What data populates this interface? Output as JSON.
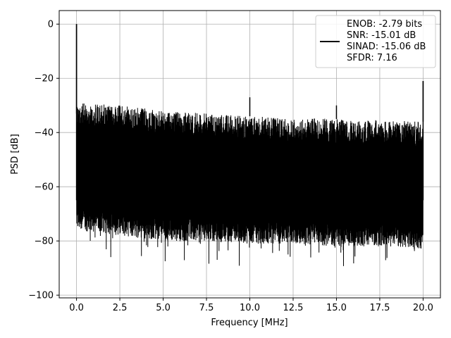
{
  "chart_data": {
    "type": "line",
    "title": "",
    "xlabel": "Frequency [MHz]",
    "ylabel": "PSD [dB]",
    "xlim": [
      -1.0,
      21.0
    ],
    "ylim": [
      -101,
      5
    ],
    "xticks": [
      0.0,
      2.5,
      5.0,
      7.5,
      10.0,
      12.5,
      15.0,
      17.5,
      20.0
    ],
    "xtick_labels": [
      "0.0",
      "2.5",
      "5.0",
      "7.5",
      "10.0",
      "12.5",
      "15.0",
      "17.5",
      "20.0"
    ],
    "yticks": [
      0,
      -20,
      -40,
      -60,
      -80,
      -100
    ],
    "ytick_labels": [
      "0",
      "−20",
      "−40",
      "−60",
      "−80",
      "−100"
    ],
    "grid": true,
    "legend_placement": "top-right",
    "series": [
      {
        "name": "ENOB: -2.79 bits\nSNR: -15.01 dB\nSINAD: -15.06 dB\nSFDR: 7.16",
        "color": "#000000",
        "spikes": [
          {
            "x": 0.0,
            "y": 0
          },
          {
            "x": 10.0,
            "y": -27
          },
          {
            "x": 15.0,
            "y": -30
          },
          {
            "x": 20.0,
            "y": -21
          }
        ],
        "envelope": {
          "x": [
            0.0,
            2.5,
            5.0,
            7.5,
            10.0,
            12.5,
            15.0,
            17.5,
            20.0
          ],
          "upper": [
            -29,
            -30,
            -32,
            -33,
            -34,
            -34.5,
            -35,
            -35.5,
            -36
          ],
          "lower": [
            -80,
            -82,
            -84,
            -84,
            -85,
            -85,
            -86,
            -86,
            -87
          ]
        }
      }
    ]
  },
  "legend": {
    "lines": [
      "ENOB: -2.79 bits",
      "SNR: -15.01 dB",
      "SINAD: -15.06 dB",
      "SFDR: 7.16"
    ],
    "line_color": "#000000"
  },
  "colors": {
    "grid": "#b0b0b0",
    "axes": "#000000",
    "signal": "#000000",
    "background": "#ffffff"
  }
}
